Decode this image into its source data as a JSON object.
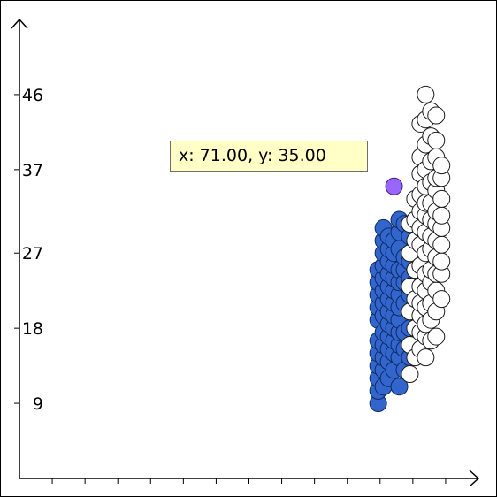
{
  "tooltip": {
    "text": "x: 71.00, y: 35.00"
  },
  "chart_data": {
    "type": "scatter",
    "title": "",
    "xlabel": "",
    "ylabel": "",
    "xlim": [
      0,
      87
    ],
    "ylim": [
      0,
      55
    ],
    "yticks": [
      9,
      18,
      27,
      37,
      46
    ],
    "x_tick_count": 14,
    "grid": false,
    "highlighted_point": {
      "x": 71,
      "y": 35,
      "color": "#9966ff"
    },
    "series": [
      {
        "color": "#3366cc",
        "stroke": "#0d2a66",
        "points": [
          [
            68,
            9
          ],
          [
            68,
            10.5
          ],
          [
            68,
            12
          ],
          [
            68,
            13.5
          ],
          [
            68,
            15
          ],
          [
            68,
            16.5
          ],
          [
            68,
            19
          ],
          [
            68,
            20.5
          ],
          [
            68,
            22
          ],
          [
            68,
            23.5
          ],
          [
            68,
            25
          ],
          [
            69,
            11
          ],
          [
            69,
            13
          ],
          [
            69,
            14.5
          ],
          [
            69,
            16
          ],
          [
            69,
            17.5
          ],
          [
            69,
            19.5
          ],
          [
            69,
            21
          ],
          [
            69,
            22.5
          ],
          [
            69,
            24
          ],
          [
            69,
            25.5
          ],
          [
            69,
            27
          ],
          [
            69,
            28.5
          ],
          [
            69,
            30
          ],
          [
            70,
            12
          ],
          [
            70,
            14
          ],
          [
            70,
            15.5
          ],
          [
            70,
            17
          ],
          [
            70,
            18.5
          ],
          [
            70,
            20
          ],
          [
            70,
            21.5
          ],
          [
            70,
            23
          ],
          [
            70,
            24.5
          ],
          [
            70,
            26
          ],
          [
            70,
            27.5
          ],
          [
            70,
            29
          ],
          [
            71,
            13
          ],
          [
            71,
            15
          ],
          [
            71,
            16.5
          ],
          [
            71,
            18
          ],
          [
            71,
            19.5
          ],
          [
            71,
            21
          ],
          [
            71,
            22.5
          ],
          [
            71,
            24
          ],
          [
            71,
            25.5
          ],
          [
            71,
            27
          ],
          [
            71,
            28.5
          ],
          [
            72,
            11
          ],
          [
            72,
            14.5
          ],
          [
            72,
            16
          ],
          [
            72,
            17.5
          ],
          [
            72,
            19
          ],
          [
            72,
            20.5
          ],
          [
            72,
            22
          ],
          [
            72,
            23.5
          ],
          [
            72,
            25
          ],
          [
            72,
            27.5
          ],
          [
            72,
            29.5
          ],
          [
            72,
            31
          ],
          [
            73,
            13
          ],
          [
            73,
            15.5
          ],
          [
            73,
            17.5
          ],
          [
            73,
            21
          ],
          [
            73,
            23.5
          ],
          [
            73,
            25
          ],
          [
            73,
            26.5
          ],
          [
            73,
            30.5
          ],
          [
            74,
            14.5
          ],
          [
            74,
            18
          ],
          [
            74,
            22
          ],
          [
            74,
            24
          ],
          [
            74,
            26
          ],
          [
            74,
            29
          ],
          [
            75,
            16
          ],
          [
            75,
            20
          ],
          [
            75,
            23.5
          ],
          [
            75,
            27
          ]
        ]
      },
      {
        "color": "#ffffff",
        "stroke": "#1a1a1a",
        "points": [
          [
            74,
            12.5
          ],
          [
            74,
            16
          ],
          [
            74,
            20
          ],
          [
            74,
            23
          ],
          [
            74,
            27
          ],
          [
            74,
            30.5
          ],
          [
            75,
            14.5
          ],
          [
            75,
            18
          ],
          [
            75,
            21.5
          ],
          [
            75,
            25
          ],
          [
            75,
            28.5
          ],
          [
            75,
            31
          ],
          [
            75,
            33.5
          ],
          [
            76,
            15.5
          ],
          [
            76,
            17.5
          ],
          [
            76,
            19.5
          ],
          [
            76,
            21
          ],
          [
            76,
            23
          ],
          [
            76,
            25.5
          ],
          [
            76,
            28
          ],
          [
            76,
            30
          ],
          [
            76,
            32
          ],
          [
            76,
            34
          ],
          [
            76,
            36.5
          ],
          [
            76,
            38.5
          ],
          [
            76,
            42.5
          ],
          [
            77,
            14.5
          ],
          [
            77,
            17
          ],
          [
            77,
            18.5
          ],
          [
            77,
            20.5
          ],
          [
            77,
            22.5
          ],
          [
            77,
            24.5
          ],
          [
            77,
            27
          ],
          [
            77,
            29.5
          ],
          [
            77,
            31.5
          ],
          [
            77,
            33
          ],
          [
            77,
            35
          ],
          [
            77,
            37
          ],
          [
            77,
            40
          ],
          [
            77,
            43
          ],
          [
            77,
            46
          ],
          [
            78,
            16.5
          ],
          [
            78,
            19
          ],
          [
            78,
            21
          ],
          [
            78,
            23.5
          ],
          [
            78,
            25
          ],
          [
            78,
            27.5
          ],
          [
            78,
            29
          ],
          [
            78,
            31
          ],
          [
            78,
            33
          ],
          [
            78,
            35.5
          ],
          [
            78,
            38
          ],
          [
            78,
            41
          ],
          [
            78,
            44
          ],
          [
            79,
            17
          ],
          [
            79,
            20
          ],
          [
            79,
            22.5
          ],
          [
            79,
            24.5
          ],
          [
            79,
            26.5
          ],
          [
            79,
            28.5
          ],
          [
            79,
            30.5
          ],
          [
            79,
            32
          ],
          [
            79,
            34.5
          ],
          [
            79,
            36
          ],
          [
            79,
            38.5
          ],
          [
            79,
            40.5
          ],
          [
            79,
            43.5
          ],
          [
            80,
            21.5
          ],
          [
            80,
            24.5
          ],
          [
            80,
            26
          ],
          [
            80,
            28
          ],
          [
            80,
            30
          ],
          [
            80,
            31.5
          ],
          [
            80,
            33.5
          ],
          [
            80,
            36
          ],
          [
            80,
            37.5
          ]
        ]
      }
    ]
  }
}
